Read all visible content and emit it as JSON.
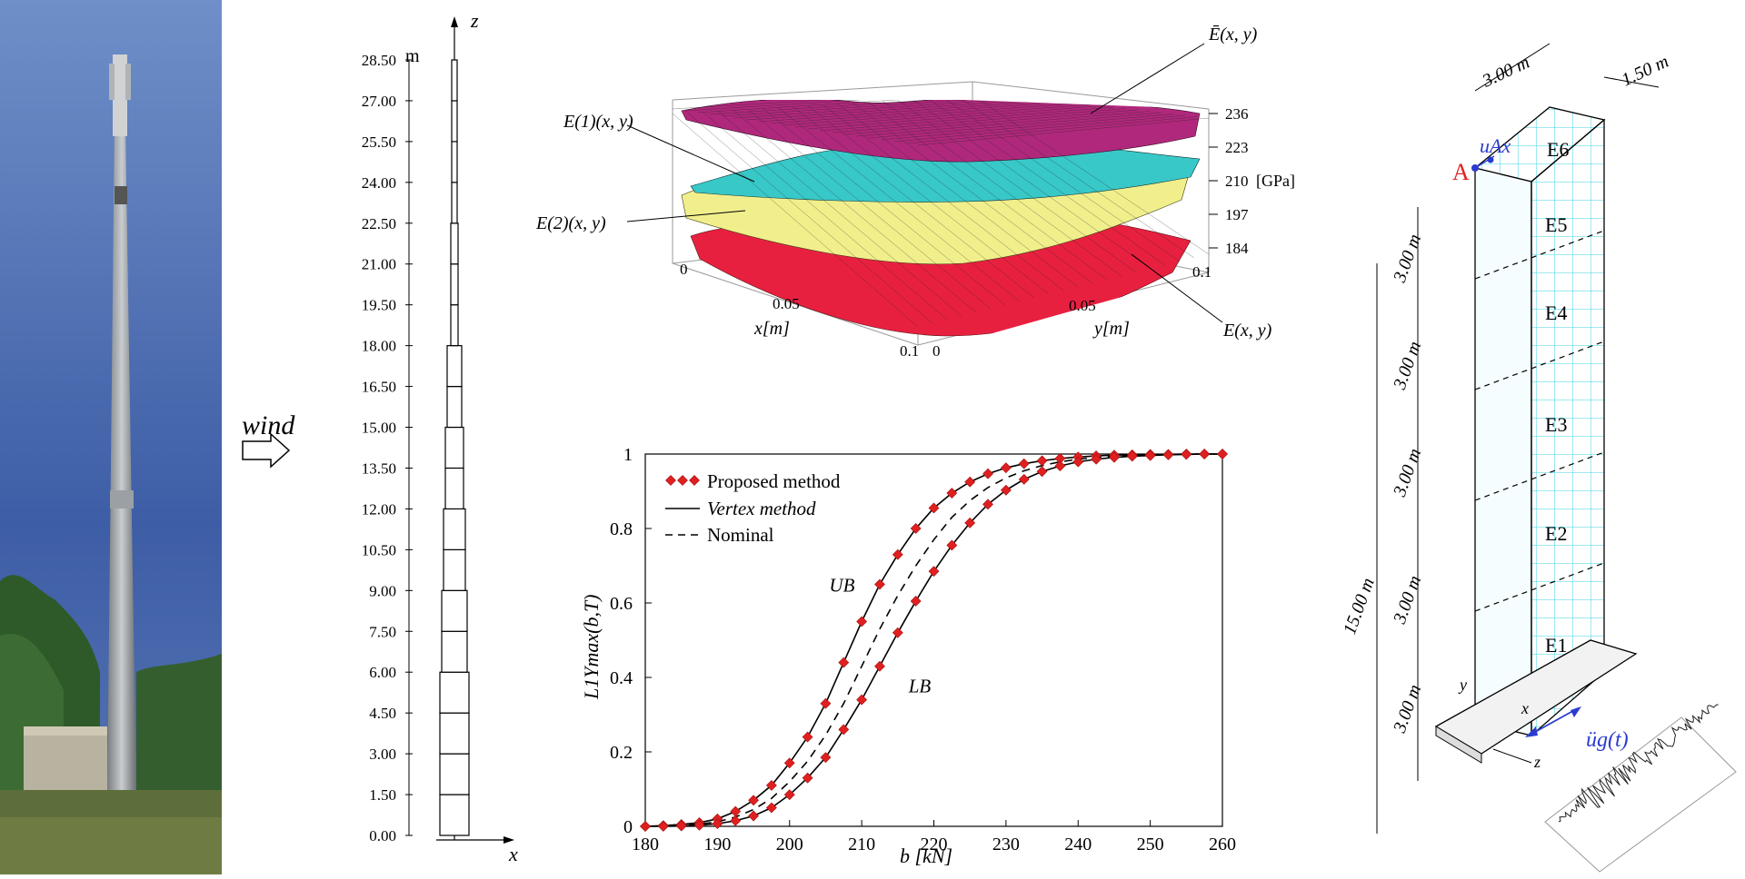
{
  "tower": {
    "unit": "m",
    "axis_z": "z",
    "axis_x": "x",
    "wind_label": "wind",
    "heights": [
      "0.00",
      "1.50",
      "3.00",
      "4.50",
      "6.00",
      "7.50",
      "9.00",
      "10.50",
      "12.00",
      "13.50",
      "15.00",
      "16.50",
      "18.00",
      "19.50",
      "21.00",
      "22.50",
      "24.00",
      "25.50",
      "27.00",
      "28.50"
    ]
  },
  "surface": {
    "label_Ebar": "Ē(x, y)",
    "label_E1": "E(1)(x, y)",
    "label_E2": "E(2)(x, y)",
    "label_Eunder": "E(x, y)",
    "z_ticks": [
      "236",
      "223",
      "210",
      "197",
      "184"
    ],
    "z_unit": "[GPa]",
    "x_label": "x[m]",
    "y_label": "y[m]",
    "x_ticks": [
      "0",
      "0.05",
      "0.1"
    ],
    "y_ticks": [
      "0",
      "0.05",
      "0.1"
    ]
  },
  "chart_data": {
    "type": "line",
    "xlabel": "b [kN]",
    "ylabel": "L1Ymax(b,T)",
    "xlim": [
      180,
      260
    ],
    "ylim": [
      0,
      1
    ],
    "x_ticks": [
      180,
      190,
      200,
      210,
      220,
      230,
      240,
      250,
      260
    ],
    "y_ticks": [
      0,
      0.2,
      0.4,
      0.6,
      0.8,
      1
    ],
    "legend": [
      "Proposed method",
      "Vertex method",
      "Nominal"
    ],
    "legend_position": "top-left",
    "annotations": [
      "UB",
      "LB"
    ],
    "x": [
      180,
      182.5,
      185,
      187.5,
      190,
      192.5,
      195,
      197.5,
      200,
      202.5,
      205,
      207.5,
      210,
      212.5,
      215,
      217.5,
      220,
      222.5,
      225,
      227.5,
      230,
      232.5,
      235,
      237.5,
      240,
      242.5,
      245,
      247.5,
      250,
      252.5,
      255,
      257.5,
      260
    ],
    "series": [
      {
        "name": "UB",
        "values": [
          0.0,
          0.002,
          0.005,
          0.01,
          0.02,
          0.04,
          0.07,
          0.11,
          0.17,
          0.24,
          0.33,
          0.44,
          0.55,
          0.65,
          0.73,
          0.8,
          0.855,
          0.895,
          0.925,
          0.947,
          0.963,
          0.974,
          0.982,
          0.988,
          0.992,
          0.995,
          0.997,
          0.998,
          0.999,
          0.999,
          1.0,
          1.0,
          1.0
        ]
      },
      {
        "name": "Nominal",
        "values": [
          0.0,
          0.001,
          0.003,
          0.006,
          0.012,
          0.025,
          0.045,
          0.075,
          0.12,
          0.175,
          0.245,
          0.33,
          0.43,
          0.53,
          0.62,
          0.7,
          0.77,
          0.83,
          0.875,
          0.91,
          0.936,
          0.955,
          0.969,
          0.979,
          0.986,
          0.991,
          0.994,
          0.996,
          0.998,
          0.999,
          1.0,
          1.0,
          1.0
        ]
      },
      {
        "name": "LB",
        "values": [
          0.0,
          0.0,
          0.001,
          0.003,
          0.007,
          0.015,
          0.028,
          0.05,
          0.085,
          0.13,
          0.185,
          0.26,
          0.34,
          0.43,
          0.52,
          0.605,
          0.685,
          0.755,
          0.815,
          0.865,
          0.903,
          0.932,
          0.953,
          0.968,
          0.979,
          0.986,
          0.991,
          0.994,
          0.996,
          0.998,
          0.999,
          1.0,
          1.0
        ]
      }
    ]
  },
  "wall": {
    "dim_top_width": "3.00 m",
    "dim_top_depth": "1.50 m",
    "dim_total": "15.00 m",
    "dim_segment": "3.00 m",
    "point_A": "A",
    "u_label": "uAx",
    "elements": [
      "E6",
      "E5",
      "E4",
      "E3",
      "E2",
      "E1"
    ],
    "axis_x": "x",
    "axis_y": "y",
    "axis_z": "z",
    "ground_accel": "üg(t)"
  },
  "colors": {
    "sky": "#3f64a8",
    "surface_top": "#a8287c",
    "surface_cyan": "#38c8c8",
    "surface_yellow": "#f0f090",
    "surface_bottom": "#e8203a",
    "marker_red": "#e02020",
    "mesh_cyan": "#40d0e0",
    "blue_label": "#2a3cd0",
    "red_label": "#e02020"
  }
}
